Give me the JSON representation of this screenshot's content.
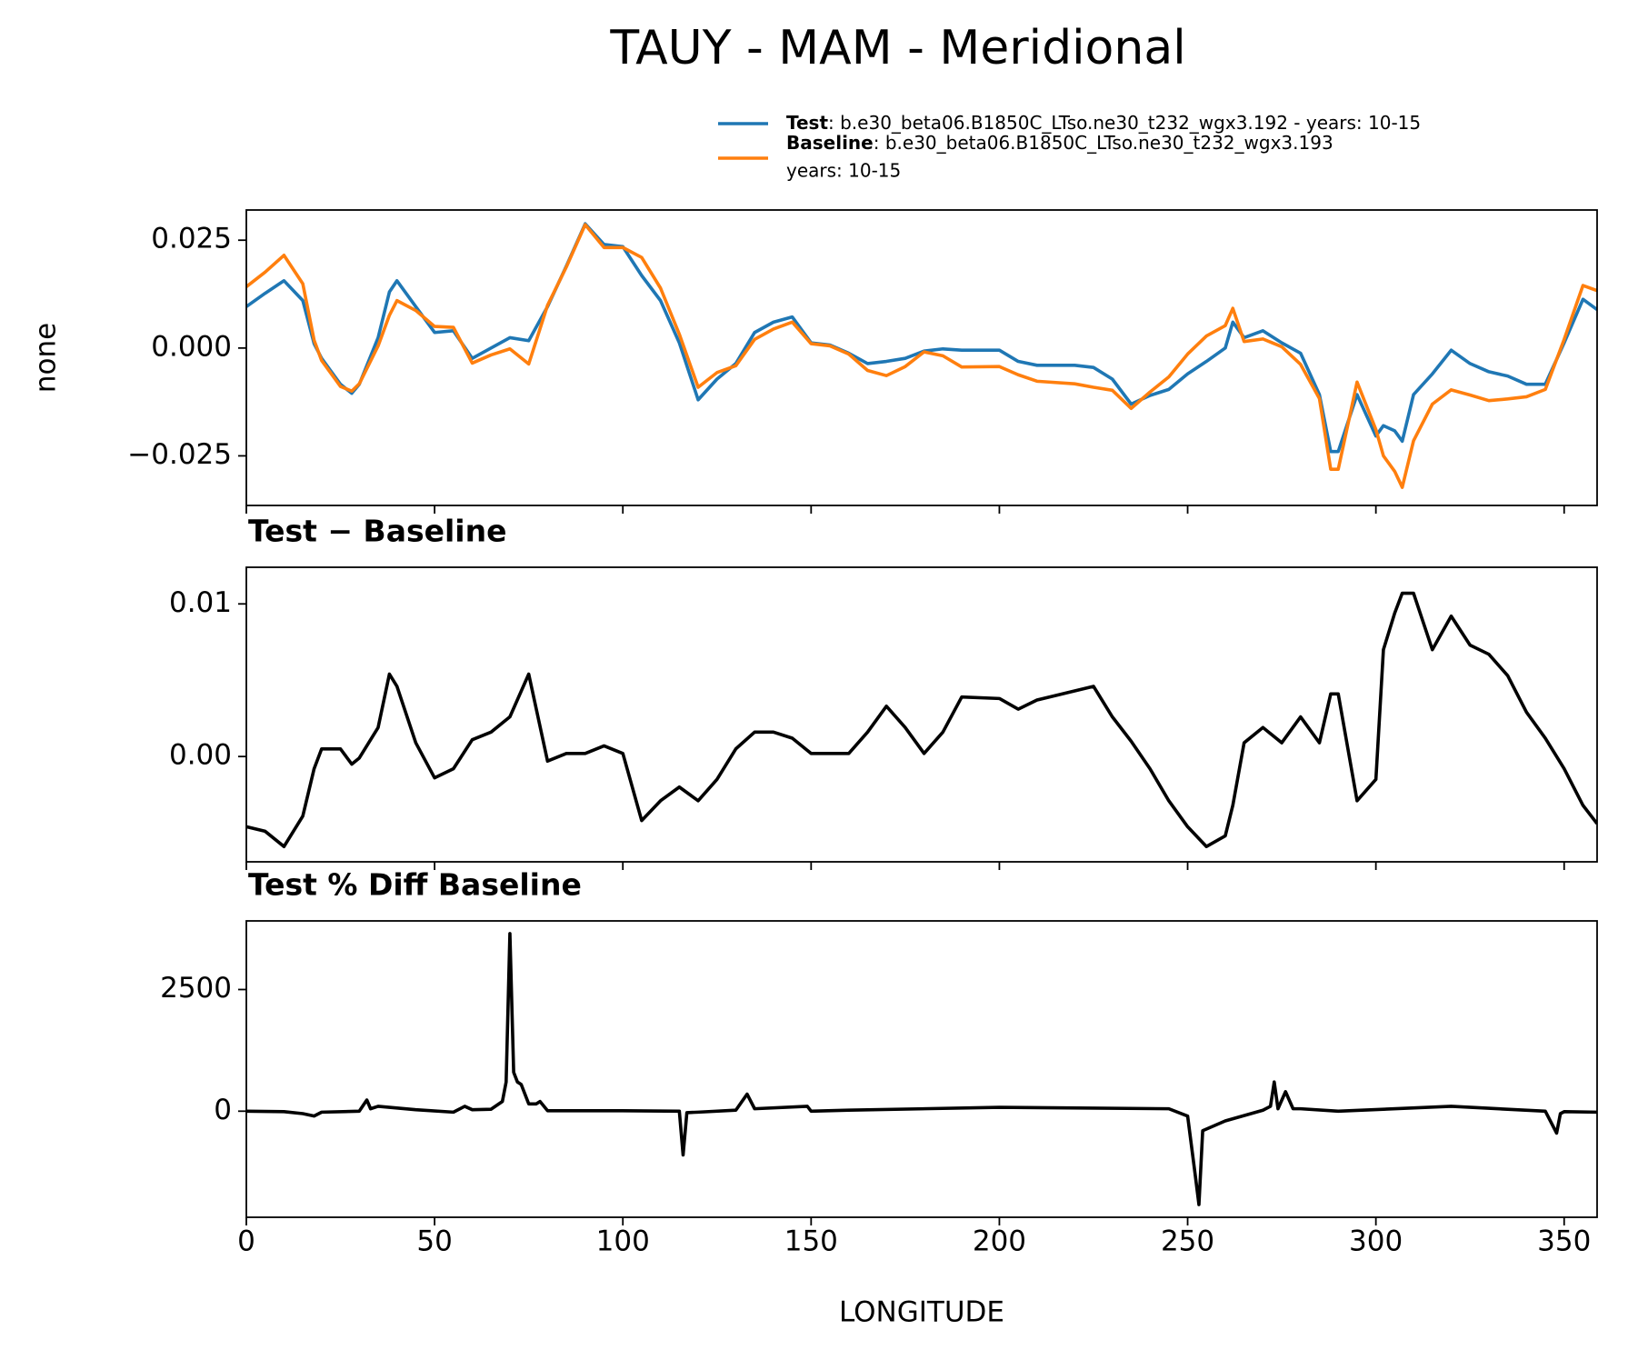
{
  "title": "TAUY - MAM - Meridional",
  "chart_data": [
    {
      "type": "line",
      "ylabel": "none",
      "x": [
        0,
        5,
        10,
        15,
        18,
        20,
        25,
        28,
        30,
        35,
        38,
        40,
        45,
        50,
        55,
        60,
        65,
        70,
        75,
        80,
        85,
        90,
        95,
        100,
        105,
        110,
        115,
        120,
        125,
        130,
        135,
        140,
        145,
        150,
        155,
        160,
        165,
        170,
        175,
        180,
        185,
        190,
        200,
        205,
        210,
        220,
        225,
        230,
        235,
        240,
        245,
        250,
        255,
        260,
        262,
        265,
        270,
        275,
        280,
        285,
        288,
        290,
        295,
        300,
        302,
        305,
        307,
        310,
        315,
        320,
        325,
        330,
        335,
        340,
        345,
        350,
        355,
        358.75
      ],
      "xlim": [
        0,
        358.75
      ],
      "xticks": [
        0,
        50,
        100,
        150,
        200,
        250,
        300,
        350
      ],
      "ylim": [
        -0.0365,
        0.032
      ],
      "yticks": [
        {
          "value": -0.025,
          "label": "−0.025"
        },
        {
          "value": 0,
          "label": "0.000"
        },
        0.025
      ],
      "series": [
        {
          "name": "Test",
          "description": [
            ": b.e30_beta06.B1850C_LTso.ne30_t232_wgx3.192 - years: 10-15"
          ],
          "color": "#1f77b4",
          "values": [
            0.0096,
            0.0127,
            0.0156,
            0.011,
            0.001,
            -0.0024,
            -0.0084,
            -0.0105,
            -0.0084,
            0.0024,
            0.013,
            0.0156,
            0.0096,
            0.0036,
            0.004,
            -0.0024,
            0,
            0.0024,
            0.0017,
            0.0096,
            0.019,
            0.0288,
            0.024,
            0.0235,
            0.0168,
            0.011,
            0.0012,
            -0.012,
            -0.0072,
            -0.0036,
            0.0036,
            0.006,
            0.0072,
            0.0012,
            0.0007,
            -0.0012,
            -0.0036,
            -0.0031,
            -0.0024,
            -0.0007,
            -0.0002,
            -0.0005,
            -0.0005,
            -0.0031,
            -0.004,
            -0.004,
            -0.0045,
            -0.0072,
            -0.013,
            -0.011,
            -0.0096,
            -0.006,
            -0.0031,
            0,
            0.006,
            0.0024,
            0.004,
            0.0012,
            -0.0012,
            -0.0108,
            -0.024,
            -0.024,
            -0.0108,
            -0.0204,
            -0.018,
            -0.0192,
            -0.0216,
            -0.0108,
            -0.006,
            -0.0005,
            -0.0036,
            -0.0055,
            -0.0065,
            -0.0084,
            -0.0084,
            0.0012,
            0.0113,
            0.0089
          ]
        },
        {
          "name": "Baseline",
          "description": [
            ": b.e30_beta06.B1850C_LTso.ne30_t232_wgx3.193",
            "years: 10-15"
          ],
          "color": "#ff7f0e",
          "values": [
            0.0142,
            0.0176,
            0.0215,
            0.0149,
            0.0018,
            -0.0029,
            -0.0089,
            -0.01,
            -0.0083,
            0.0005,
            0.0076,
            0.011,
            0.0087,
            0.005,
            0.0048,
            -0.0035,
            -0.0016,
            -0.0002,
            -0.0037,
            0.0099,
            0.0188,
            0.0286,
            0.0233,
            0.0233,
            0.021,
            0.0139,
            0.0032,
            -0.0091,
            -0.0057,
            -0.0041,
            0.002,
            0.0044,
            0.006,
            0.001,
            0.0005,
            -0.0014,
            -0.0052,
            -0.0064,
            -0.0043,
            -0.0009,
            -0.0018,
            -0.0044,
            -0.0043,
            -0.0062,
            -0.0077,
            -0.0083,
            -0.0091,
            -0.0098,
            -0.014,
            -0.0102,
            -0.0067,
            -0.0014,
            0.0028,
            0.0052,
            0.0092,
            0.0015,
            0.0021,
            0.0003,
            -0.0038,
            -0.0117,
            -0.0281,
            -0.0281,
            -0.0079,
            -0.0189,
            -0.025,
            -0.0286,
            -0.0323,
            -0.0215,
            -0.013,
            -0.0097,
            -0.0109,
            -0.0122,
            -0.0118,
            -0.0113,
            -0.0096,
            0.002,
            0.0145,
            0.0133
          ]
        }
      ]
    },
    {
      "type": "line",
      "title": "Test − Baseline",
      "x": [
        0,
        5,
        10,
        15,
        18,
        20,
        25,
        28,
        30,
        35,
        38,
        40,
        45,
        50,
        55,
        60,
        65,
        70,
        75,
        80,
        85,
        90,
        95,
        100,
        105,
        110,
        115,
        120,
        125,
        130,
        135,
        140,
        145,
        150,
        155,
        160,
        165,
        170,
        175,
        180,
        185,
        190,
        200,
        205,
        210,
        220,
        225,
        230,
        235,
        240,
        245,
        250,
        255,
        260,
        262,
        265,
        270,
        275,
        280,
        285,
        288,
        290,
        295,
        300,
        302,
        305,
        307,
        310,
        315,
        320,
        325,
        330,
        335,
        340,
        345,
        350,
        355,
        358.75
      ],
      "xlim": [
        0,
        358.75
      ],
      "xticks": [
        0,
        50,
        100,
        150,
        200,
        250,
        300,
        350
      ],
      "ylim": [
        -0.0069,
        0.0124
      ],
      "yticks": [
        {
          "value": 0,
          "label": "0.00"
        },
        0.01
      ],
      "series": [
        {
          "color": "#000000",
          "values": [
            -0.0046,
            -0.0049,
            -0.0059,
            -0.0039,
            -0.0008,
            0.0005,
            0.0005,
            -0.0005,
            -0.0001,
            0.0019,
            0.0054,
            0.0046,
            0.0009,
            -0.0014,
            -0.0008,
            0.0011,
            0.0016,
            0.0026,
            0.0054,
            -0.0003,
            0.0002,
            0.0002,
            0.0007,
            0.0002,
            -0.0042,
            -0.0029,
            -0.002,
            -0.0029,
            -0.0015,
            0.0005,
            0.0016,
            0.0016,
            0.0012,
            0.0002,
            0.0002,
            0.0002,
            0.0016,
            0.0033,
            0.0019,
            0.0002,
            0.0016,
            0.0039,
            0.0038,
            0.0031,
            0.0037,
            0.0043,
            0.0046,
            0.0026,
            0.001,
            -0.0008,
            -0.0029,
            -0.0046,
            -0.0059,
            -0.0052,
            -0.0032,
            0.0009,
            0.0019,
            0.0009,
            0.0026,
            0.0009,
            0.0041,
            0.0041,
            -0.0029,
            -0.0015,
            0.007,
            0.0094,
            0.0107,
            0.0107,
            0.007,
            0.0092,
            0.0073,
            0.0067,
            0.0053,
            0.0029,
            0.0012,
            -0.0008,
            -0.0032,
            -0.0044
          ]
        }
      ]
    },
    {
      "type": "line",
      "title": "Test % Diff Baseline",
      "xlabel": "LONGITUDE",
      "x": [
        0,
        10,
        15,
        18,
        20,
        30,
        32,
        33,
        35,
        45,
        55,
        58,
        60,
        65,
        68,
        69,
        70,
        71,
        72,
        73,
        75,
        77,
        78,
        80,
        100,
        115,
        116,
        117,
        120,
        130,
        133,
        135,
        149,
        150,
        160,
        200,
        245,
        250,
        252,
        253,
        254,
        260,
        270,
        272,
        273,
        274,
        276,
        278,
        280,
        290,
        320,
        345,
        348,
        349,
        350,
        358.75
      ],
      "xlim": [
        0,
        358.75
      ],
      "xticks": [
        0,
        50,
        100,
        150,
        200,
        250,
        300,
        350
      ],
      "ylim": [
        -2180,
        3910
      ],
      "yticks": [
        0,
        2500
      ],
      "series": [
        {
          "color": "#000000",
          "values": [
            0,
            -10,
            -50,
            -100,
            -20,
            0,
            230,
            50,
            100,
            30,
            -20,
            100,
            30,
            40,
            200,
            600,
            3650,
            800,
            600,
            550,
            150,
            150,
            200,
            10,
            10,
            0,
            -900,
            -30,
            -20,
            20,
            350,
            50,
            100,
            0,
            20,
            80,
            50,
            -100,
            -1300,
            -1920,
            -400,
            -200,
            20,
            100,
            600,
            50,
            400,
            50,
            50,
            0,
            100,
            0,
            -450,
            -50,
            -10,
            -20
          ]
        }
      ]
    }
  ]
}
